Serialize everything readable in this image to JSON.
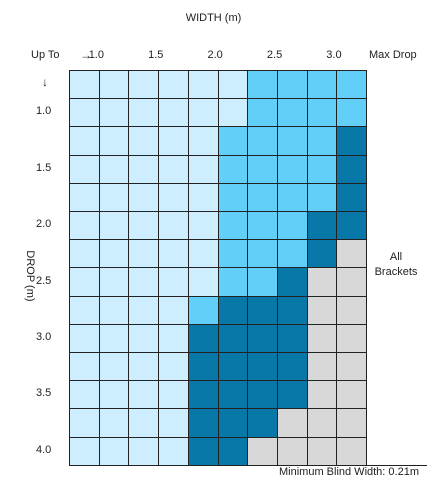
{
  "title_width": "WIDTH  (m)",
  "title_drop": "DROP (m)",
  "header": {
    "up_to": "Up To",
    "right_arrow": "→",
    "down_arrow": "↓",
    "width_ticks": [
      {
        "label": "1.0",
        "col": 1
      },
      {
        "label": "1.5",
        "col": 3
      },
      {
        "label": "2.0",
        "col": 5
      },
      {
        "label": "2.5",
        "col": 7
      },
      {
        "label": "3.0",
        "col": 9
      }
    ],
    "max_drop": "Max Drop"
  },
  "drop_ticks": [
    {
      "label": "1.0",
      "row": 1
    },
    {
      "label": "1.5",
      "row": 3
    },
    {
      "label": "2.0",
      "row": 5
    },
    {
      "label": "2.5",
      "row": 7
    },
    {
      "label": "3.0",
      "row": 9
    },
    {
      "label": "3.5",
      "row": 11
    },
    {
      "label": "4.0",
      "row": 13
    }
  ],
  "all_brackets": [
    "All",
    "Brackets"
  ],
  "footer_note": "Minimum Blind Width: 0.21m",
  "colors": {
    "L": "#cdeefe",
    "M": "#62cff9",
    "D": "#0878a8",
    "G": "#d8d8d8"
  },
  "grid_rows": [
    "LLLLLLMMMM",
    "LLLLLLMMMM",
    "LLLLLMMMMD",
    "LLLLLMMMMD",
    "LLLLLMMMMD",
    "LLLLLMMMDD",
    "LLLLLMMMDG",
    "LLLLLMMDGG",
    "LLLLMDDDGG",
    "LLLLDDDDGG",
    "LLLLDDDDGG",
    "LLLLDDDDGG",
    "LLLLDDDGGG",
    "LLLLDDGGGG"
  ]
}
